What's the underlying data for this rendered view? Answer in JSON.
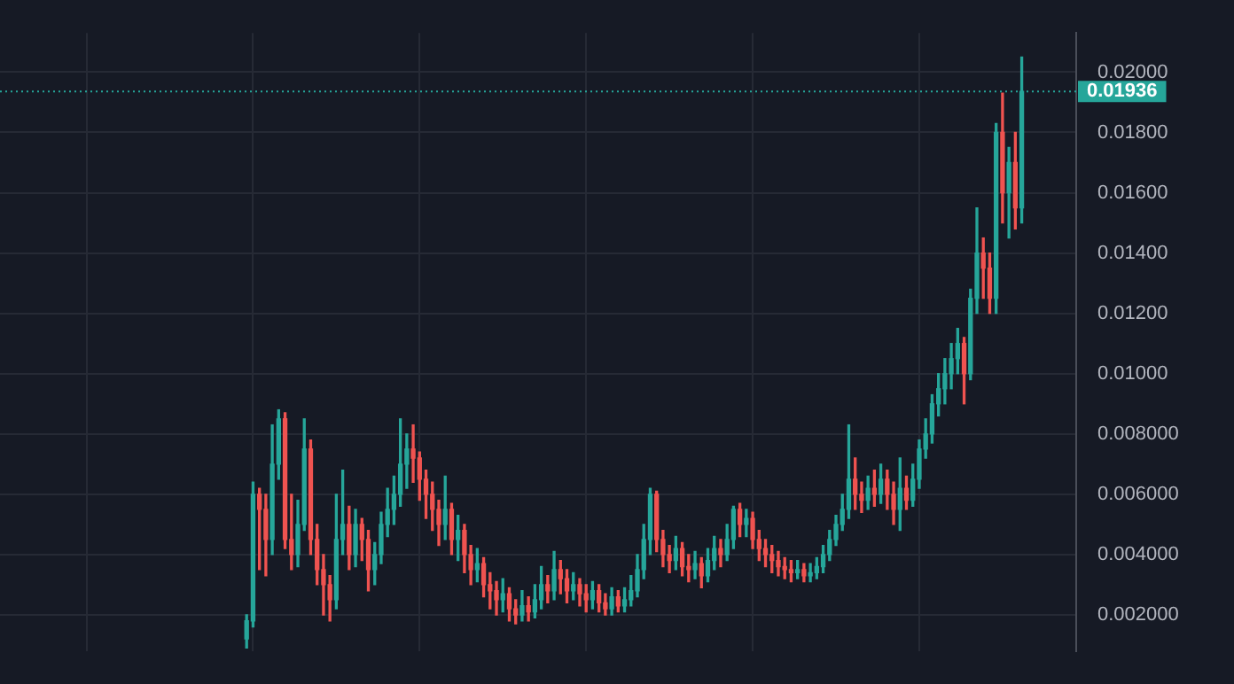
{
  "chart_data": {
    "type": "candlestick",
    "categories": [
      null,
      null,
      null,
      null,
      null,
      null,
      null,
      null,
      null,
      null,
      null,
      null,
      null,
      null,
      null,
      null,
      null,
      null,
      null,
      null,
      null,
      null,
      null,
      null,
      null,
      null,
      null,
      null,
      null,
      null,
      null,
      null,
      null,
      null,
      null,
      null,
      null,
      null,
      null,
      null,
      null,
      null,
      null,
      null,
      null,
      null,
      null,
      null,
      null,
      null,
      null,
      null,
      null,
      null,
      null,
      null,
      null,
      null,
      null,
      null,
      null,
      null,
      null,
      null,
      null,
      null,
      null,
      null,
      null,
      null,
      null,
      null,
      null,
      null,
      null,
      null,
      null,
      null,
      null,
      null,
      null,
      null,
      null,
      null,
      null,
      null,
      null,
      null,
      null,
      null,
      null,
      null,
      null,
      null,
      null,
      null,
      null,
      null,
      null,
      null,
      null,
      null,
      null,
      null,
      null,
      null,
      null,
      null,
      null,
      null,
      null,
      null,
      null,
      null,
      null,
      null,
      null,
      null,
      null,
      null,
      null,
      null,
      null,
      null,
      null,
      null,
      null,
      null,
      null,
      null,
      null,
      null,
      null,
      null,
      null,
      null,
      null,
      null,
      null,
      null,
      null,
      null,
      null,
      null,
      null,
      null,
      null,
      null,
      null,
      null,
      null,
      null,
      null,
      null,
      null,
      null,
      null,
      null,
      null,
      null,
      null,
      null,
      null,
      null,
      null,
      null,
      null,
      null
    ],
    "ohlc": [
      null,
      null,
      null,
      null,
      null,
      null,
      null,
      null,
      null,
      null,
      null,
      null,
      null,
      null,
      null,
      null,
      null,
      null,
      null,
      null,
      null,
      null,
      null,
      null,
      null,
      null,
      null,
      null,
      null,
      null,
      null,
      null,
      null,
      null,
      null,
      null,
      null,
      null,
      [
        0.0012,
        0.002,
        0.0009,
        0.0018
      ],
      [
        0.0018,
        0.0064,
        0.0016,
        0.006
      ],
      [
        0.006,
        0.0062,
        0.0035,
        0.0055
      ],
      [
        0.0055,
        0.006,
        0.0033,
        0.0045
      ],
      [
        0.0045,
        0.0083,
        0.004,
        0.007
      ],
      [
        0.007,
        0.0088,
        0.0065,
        0.0085
      ],
      [
        0.0085,
        0.0087,
        0.0042,
        0.0045
      ],
      [
        0.0045,
        0.006,
        0.0035,
        0.004
      ],
      [
        0.004,
        0.0058,
        0.0036,
        0.005
      ],
      [
        0.005,
        0.0085,
        0.0048,
        0.0075
      ],
      [
        0.0075,
        0.0078,
        0.004,
        0.0045
      ],
      [
        0.0045,
        0.005,
        0.003,
        0.0035
      ],
      [
        0.0035,
        0.004,
        0.002,
        0.003
      ],
      [
        0.003,
        0.0033,
        0.0018,
        0.0025
      ],
      [
        0.0025,
        0.006,
        0.0022,
        0.0045
      ],
      [
        0.0045,
        0.0068,
        0.004,
        0.005
      ],
      [
        0.005,
        0.0056,
        0.0035,
        0.004
      ],
      [
        0.004,
        0.0055,
        0.0036,
        0.005
      ],
      [
        0.005,
        0.0052,
        0.0038,
        0.0045
      ],
      [
        0.0045,
        0.0048,
        0.0028,
        0.0035
      ],
      [
        0.0035,
        0.0044,
        0.003,
        0.004
      ],
      [
        0.004,
        0.0054,
        0.0037,
        0.005
      ],
      [
        0.005,
        0.0062,
        0.0046,
        0.0055
      ],
      [
        0.0055,
        0.0066,
        0.005,
        0.006
      ],
      [
        0.006,
        0.0085,
        0.0056,
        0.007
      ],
      [
        0.007,
        0.008,
        0.0062,
        0.0075
      ],
      [
        0.0075,
        0.0083,
        0.0064,
        0.0072
      ],
      [
        0.0072,
        0.0074,
        0.0058,
        0.0065
      ],
      [
        0.0065,
        0.0068,
        0.0052,
        0.006
      ],
      [
        0.006,
        0.0064,
        0.0048,
        0.0055
      ],
      [
        0.0055,
        0.0058,
        0.0043,
        0.005
      ],
      [
        0.005,
        0.0066,
        0.0045,
        0.0055
      ],
      [
        0.0055,
        0.0057,
        0.004,
        0.0045
      ],
      [
        0.0045,
        0.0053,
        0.0038,
        0.0048
      ],
      [
        0.0048,
        0.005,
        0.0034,
        0.004
      ],
      [
        0.004,
        0.0043,
        0.003,
        0.0035
      ],
      [
        0.0035,
        0.0042,
        0.0031,
        0.0037
      ],
      [
        0.0037,
        0.0039,
        0.0026,
        0.003
      ],
      [
        0.003,
        0.0034,
        0.0022,
        0.0028
      ],
      [
        0.0028,
        0.0031,
        0.002,
        0.0025
      ],
      [
        0.0025,
        0.0032,
        0.0021,
        0.0027
      ],
      [
        0.0027,
        0.0029,
        0.0018,
        0.0022
      ],
      [
        0.0022,
        0.0025,
        0.0017,
        0.002
      ],
      [
        0.002,
        0.0028,
        0.0018,
        0.0023
      ],
      [
        0.0023,
        0.0026,
        0.0018,
        0.0021
      ],
      [
        0.0021,
        0.003,
        0.0019,
        0.0025
      ],
      [
        0.0025,
        0.0036,
        0.0022,
        0.003
      ],
      [
        0.003,
        0.0033,
        0.0024,
        0.0028
      ],
      [
        0.0028,
        0.0041,
        0.0025,
        0.0035
      ],
      [
        0.0035,
        0.0038,
        0.0027,
        0.0032
      ],
      [
        0.0032,
        0.0035,
        0.0024,
        0.0028
      ],
      [
        0.0028,
        0.0034,
        0.0025,
        0.003
      ],
      [
        0.003,
        0.0032,
        0.0023,
        0.0027
      ],
      [
        0.0027,
        0.003,
        0.0021,
        0.0025
      ],
      [
        0.0025,
        0.0031,
        0.0022,
        0.0028
      ],
      [
        0.0028,
        0.003,
        0.0021,
        0.0024
      ],
      [
        0.0024,
        0.0027,
        0.002,
        0.0022
      ],
      [
        0.0022,
        0.0029,
        0.002,
        0.0026
      ],
      [
        0.0026,
        0.0028,
        0.0021,
        0.0023
      ],
      [
        0.0023,
        0.0029,
        0.0021,
        0.0025
      ],
      [
        0.0025,
        0.0033,
        0.0023,
        0.0028
      ],
      [
        0.0028,
        0.004,
        0.0026,
        0.0035
      ],
      [
        0.0035,
        0.005,
        0.0032,
        0.0045
      ],
      [
        0.0045,
        0.0062,
        0.004,
        0.006
      ],
      [
        0.006,
        0.0061,
        0.0041,
        0.0045
      ],
      [
        0.0045,
        0.0048,
        0.0036,
        0.004
      ],
      [
        0.004,
        0.0043,
        0.0034,
        0.0038
      ],
      [
        0.0038,
        0.0046,
        0.0035,
        0.0042
      ],
      [
        0.0042,
        0.0044,
        0.0033,
        0.0036
      ],
      [
        0.0036,
        0.004,
        0.0031,
        0.0035
      ],
      [
        0.0035,
        0.0041,
        0.0032,
        0.0037
      ],
      [
        0.0037,
        0.0039,
        0.0029,
        0.0033
      ],
      [
        0.0033,
        0.0042,
        0.0031,
        0.0038
      ],
      [
        0.0038,
        0.0046,
        0.0035,
        0.0042
      ],
      [
        0.0042,
        0.0045,
        0.0036,
        0.004
      ],
      [
        0.004,
        0.005,
        0.0038,
        0.0045
      ],
      [
        0.0045,
        0.0056,
        0.0042,
        0.0055
      ],
      [
        0.0055,
        0.0057,
        0.0046,
        0.005
      ],
      [
        0.005,
        0.0055,
        0.0046,
        0.0052
      ],
      [
        0.0052,
        0.0054,
        0.0042,
        0.0045
      ],
      [
        0.0045,
        0.0048,
        0.0038,
        0.0042
      ],
      [
        0.0042,
        0.0045,
        0.0036,
        0.004
      ],
      [
        0.004,
        0.0043,
        0.0034,
        0.0038
      ],
      [
        0.0038,
        0.0041,
        0.0033,
        0.0036
      ],
      [
        0.0036,
        0.0039,
        0.0032,
        0.0035
      ],
      [
        0.0035,
        0.0038,
        0.0031,
        0.0034
      ],
      [
        0.0034,
        0.0038,
        0.0032,
        0.0035
      ],
      [
        0.0035,
        0.0037,
        0.0031,
        0.0033
      ],
      [
        0.0033,
        0.0037,
        0.0031,
        0.0034
      ],
      [
        0.0034,
        0.0039,
        0.0032,
        0.0036
      ],
      [
        0.0036,
        0.0043,
        0.0034,
        0.004
      ],
      [
        0.004,
        0.0048,
        0.0038,
        0.0045
      ],
      [
        0.0045,
        0.0053,
        0.0043,
        0.005
      ],
      [
        0.005,
        0.006,
        0.0048,
        0.0055
      ],
      [
        0.0055,
        0.0083,
        0.0052,
        0.0065
      ],
      [
        0.0065,
        0.0072,
        0.0055,
        0.006
      ],
      [
        0.006,
        0.0064,
        0.0054,
        0.0058
      ],
      [
        0.0058,
        0.0066,
        0.0055,
        0.0062
      ],
      [
        0.0062,
        0.0068,
        0.0056,
        0.006
      ],
      [
        0.006,
        0.007,
        0.0057,
        0.0065
      ],
      [
        0.0065,
        0.0068,
        0.0055,
        0.006
      ],
      [
        0.006,
        0.0064,
        0.005,
        0.0055
      ],
      [
        0.0055,
        0.0072,
        0.0048,
        0.0062
      ],
      [
        0.0062,
        0.0066,
        0.0055,
        0.0058
      ],
      [
        0.0058,
        0.007,
        0.0056,
        0.0065
      ],
      [
        0.0065,
        0.0078,
        0.0062,
        0.0075
      ],
      [
        0.0075,
        0.0085,
        0.0072,
        0.008
      ],
      [
        0.008,
        0.0093,
        0.0077,
        0.009
      ],
      [
        0.009,
        0.01,
        0.0086,
        0.0095
      ],
      [
        0.0095,
        0.0105,
        0.009,
        0.01
      ],
      [
        0.01,
        0.011,
        0.0095,
        0.0105
      ],
      [
        0.0105,
        0.0115,
        0.01,
        0.011
      ],
      [
        0.011,
        0.0112,
        0.009,
        0.01
      ],
      [
        0.01,
        0.0128,
        0.0098,
        0.0125
      ],
      [
        0.0125,
        0.0155,
        0.012,
        0.014
      ],
      [
        0.014,
        0.0145,
        0.0125,
        0.0135
      ],
      [
        0.0135,
        0.014,
        0.012,
        0.0125
      ],
      [
        0.0125,
        0.0183,
        0.012,
        0.018
      ],
      [
        0.018,
        0.0193,
        0.015,
        0.016
      ],
      [
        0.016,
        0.0175,
        0.0145,
        0.017
      ],
      [
        0.017,
        0.018,
        0.0148,
        0.0155
      ],
      [
        0.0155,
        0.0205,
        0.015,
        0.01936
      ],
      null,
      null,
      null,
      null,
      null,
      null,
      null,
      null
    ],
    "colors": [
      null,
      null,
      null,
      null,
      null,
      null,
      null,
      null,
      null,
      null,
      null,
      null,
      null,
      null,
      null,
      null,
      null,
      null,
      null,
      null,
      null,
      null,
      null,
      null,
      null,
      null,
      null,
      null,
      null,
      null,
      null,
      null,
      null,
      null,
      null,
      null,
      null,
      null,
      "#26a69a",
      "#26a69a",
      "#ef5350",
      "#ef5350",
      "#26a69a",
      "#26a69a",
      "#ef5350",
      "#ef5350",
      "#26a69a",
      "#26a69a",
      "#ef5350",
      "#ef5350",
      "#ef5350",
      "#ef5350",
      "#26a69a",
      "#26a69a",
      "#ef5350",
      "#26a69a",
      "#ef5350",
      "#ef5350",
      "#26a69a",
      "#26a69a",
      "#26a69a",
      "#26a69a",
      "#26a69a",
      "#26a69a",
      "#ef5350",
      "#ef5350",
      "#ef5350",
      "#ef5350",
      "#ef5350",
      "#26a69a",
      "#ef5350",
      "#26a69a",
      "#ef5350",
      "#ef5350",
      "#26a69a",
      "#ef5350",
      "#ef5350",
      "#ef5350",
      "#26a69a",
      "#ef5350",
      "#ef5350",
      "#26a69a",
      "#ef5350",
      "#26a69a",
      "#26a69a",
      "#ef5350",
      "#26a69a",
      "#ef5350",
      "#ef5350",
      "#26a69a",
      "#ef5350",
      "#ef5350",
      "#26a69a",
      "#ef5350",
      "#ef5350",
      "#26a69a",
      "#ef5350",
      "#26a69a",
      "#26a69a",
      "#26a69a",
      "#26a69a",
      "#26a69a",
      "#ef5350",
      "#ef5350",
      "#ef5350",
      "#26a69a",
      "#ef5350",
      "#ef5350",
      "#26a69a",
      "#ef5350",
      "#26a69a",
      "#26a69a",
      "#ef5350",
      "#26a69a",
      "#26a69a",
      "#ef5350",
      "#26a69a",
      "#ef5350",
      "#ef5350",
      "#ef5350",
      "#ef5350",
      "#ef5350",
      "#ef5350",
      "#ef5350",
      "#26a69a",
      "#ef5350",
      "#26a69a",
      "#26a69a",
      "#26a69a",
      "#26a69a",
      "#26a69a",
      "#26a69a",
      "#26a69a",
      "#ef5350",
      "#ef5350",
      "#26a69a",
      "#ef5350",
      "#26a69a",
      "#ef5350",
      "#ef5350",
      "#26a69a",
      "#ef5350",
      "#26a69a",
      "#26a69a",
      "#26a69a",
      "#26a69a",
      "#26a69a",
      "#26a69a",
      "#26a69a",
      "#26a69a",
      "#ef5350",
      "#26a69a",
      "#26a69a",
      "#ef5350",
      "#ef5350",
      "#26a69a",
      "#ef5350",
      "#26a69a",
      "#ef5350",
      "#26a69a",
      null,
      null,
      null,
      null,
      null,
      null,
      null,
      null
    ],
    "ylim": [
      0.0008,
      0.0213
    ],
    "yticks": [
      {
        "value": 0.002,
        "label": "0.002000"
      },
      {
        "value": 0.004,
        "label": "0.004000"
      },
      {
        "value": 0.006,
        "label": "0.006000"
      },
      {
        "value": 0.008,
        "label": "0.008000"
      },
      {
        "value": 0.01,
        "label": "0.01000"
      },
      {
        "value": 0.012,
        "label": "0.01200"
      },
      {
        "value": 0.014,
        "label": "0.01400"
      },
      {
        "value": 0.016,
        "label": "0.01600"
      },
      {
        "value": 0.018,
        "label": "0.01800"
      },
      {
        "value": 0.02,
        "label": "0.02000"
      }
    ],
    "ref_lines": [
      {
        "axis": "y",
        "value": 0.01936,
        "label": "0.01936",
        "color": "#26a69a",
        "line_style": "dotted"
      }
    ],
    "grid": true,
    "tick_labels": "y",
    "legend": false
  }
}
